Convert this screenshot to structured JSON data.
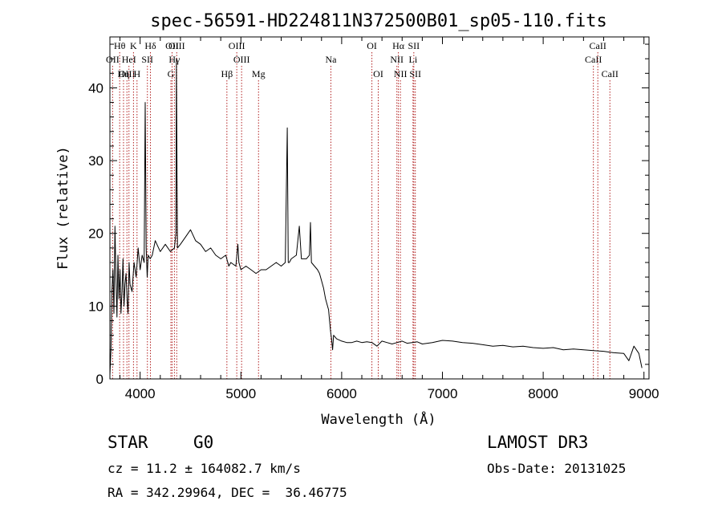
{
  "title": "spec-56591-HD224811N372500B01_sp05-110.fits",
  "info": {
    "object_class": "STAR",
    "subclass": "G0",
    "survey": "LAMOST DR3",
    "cz": "cz = 11.2 ± 164082.7 km/s",
    "obs_date": "Obs-Date: 20131025",
    "radec": "RA = 342.29964, DEC =  36.46775"
  },
  "chart_data": {
    "type": "line",
    "xlabel": "Wavelength (Å)",
    "ylabel": "Flux (relative)",
    "xlim": [
      3700,
      9050
    ],
    "ylim": [
      0,
      47
    ],
    "x_ticks": [
      4000,
      5000,
      6000,
      7000,
      8000,
      9000
    ],
    "y_ticks": [
      0,
      10,
      20,
      30,
      40
    ],
    "line_color": "#000000",
    "marker_color": "#b22222",
    "series": [
      {
        "x": [
          3700,
          3710,
          3720,
          3730,
          3740,
          3750,
          3760,
          3770,
          3780,
          3790,
          3800,
          3810,
          3820,
          3830,
          3840,
          3850,
          3860,
          3870,
          3880,
          3890,
          3900,
          3920,
          3940,
          3960,
          3980,
          4000,
          4020,
          4040,
          4050,
          4060,
          4070,
          4080,
          4100,
          4120,
          4150,
          4200,
          4250,
          4300,
          4340,
          4355,
          4360,
          4370,
          4400,
          4450,
          4500,
          4550,
          4600,
          4650,
          4700,
          4750,
          4800,
          4850,
          4870,
          4880,
          4900,
          4950,
          4970,
          4980,
          5000,
          5050,
          5100,
          5150,
          5200,
          5250,
          5300,
          5350,
          5400,
          5440,
          5460,
          5470,
          5480,
          5500,
          5550,
          5580,
          5600,
          5650,
          5680,
          5690,
          5700,
          5730,
          5760,
          5780,
          5800,
          5820,
          5840,
          5860,
          5870,
          5880,
          5890,
          5900,
          5910,
          5920,
          5950,
          6000,
          6050,
          6100,
          6150,
          6200,
          6250,
          6300,
          6350,
          6400,
          6450,
          6500,
          6550,
          6600,
          6650,
          6700,
          6750,
          6800,
          6900,
          7000,
          7100,
          7200,
          7300,
          7400,
          7500,
          7600,
          7700,
          7800,
          7900,
          8000,
          8100,
          8200,
          8300,
          8400,
          8500,
          8600,
          8700,
          8800,
          8850,
          8900,
          8950,
          8980
        ],
        "y": [
          0.5,
          4.0,
          12.0,
          15.0,
          9.0,
          21.0,
          14.0,
          8.5,
          17.0,
          11.0,
          15.0,
          9.0,
          12.0,
          16.5,
          10.0,
          13.0,
          14.5,
          11.0,
          9.0,
          16.0,
          13.0,
          12.0,
          16.0,
          14.0,
          18.0,
          15.0,
          17.0,
          16.0,
          38.0,
          18.0,
          14.0,
          17.0,
          16.5,
          17.0,
          19.0,
          17.5,
          18.5,
          17.5,
          18.0,
          20.0,
          44.0,
          18.0,
          18.5,
          19.5,
          20.5,
          19.0,
          18.5,
          17.5,
          18.0,
          17.0,
          16.5,
          17.0,
          16.0,
          15.5,
          16.0,
          15.5,
          18.5,
          16.0,
          15.0,
          15.5,
          15.0,
          14.5,
          15.0,
          15.0,
          15.5,
          16.0,
          15.5,
          16.0,
          34.5,
          16.0,
          16.0,
          16.5,
          17.0,
          21.0,
          16.5,
          16.5,
          17.0,
          21.5,
          16.0,
          15.5,
          15.0,
          14.5,
          13.5,
          12.5,
          11.0,
          10.0,
          9.5,
          8.0,
          6.5,
          5.5,
          4.0,
          6.0,
          5.5,
          5.2,
          5.0,
          5.0,
          5.2,
          5.0,
          5.1,
          5.0,
          4.5,
          5.2,
          5.0,
          4.8,
          5.0,
          5.2,
          4.9,
          5.0,
          5.1,
          4.8,
          5.0,
          5.3,
          5.2,
          5.0,
          4.9,
          4.7,
          4.5,
          4.6,
          4.4,
          4.5,
          4.3,
          4.2,
          4.3,
          4.0,
          4.1,
          4.0,
          3.9,
          3.8,
          3.6,
          3.5,
          2.5,
          4.5,
          3.5,
          1.5
        ]
      }
    ],
    "line_markers": [
      {
        "label": "Hθ",
        "x": 3797,
        "row": 0
      },
      {
        "label": "OII",
        "x": 3727,
        "row": 1
      },
      {
        "label": "OIII",
        "x": 3869,
        "row": 2
      },
      {
        "label": "Hη",
        "x": 3835,
        "row": 2
      },
      {
        "label": "HeI",
        "x": 3889,
        "row": 1
      },
      {
        "label": "K",
        "x": 3934,
        "row": 0
      },
      {
        "label": "H",
        "x": 3969,
        "row": 2
      },
      {
        "label": "SII",
        "x": 4072,
        "row": 1
      },
      {
        "label": "Hδ",
        "x": 4102,
        "row": 0
      },
      {
        "label": "OII",
        "x": 4317,
        "row": 0
      },
      {
        "label": "Hγ",
        "x": 4340,
        "row": 1
      },
      {
        "label": "G",
        "x": 4305,
        "row": 2
      },
      {
        "label": "OIII",
        "x": 4363,
        "row": 0
      },
      {
        "label": "Hβ",
        "x": 4861,
        "row": 2
      },
      {
        "label": "OIII",
        "x": 4959,
        "row": 0
      },
      {
        "label": "OIII",
        "x": 5007,
        "row": 1
      },
      {
        "label": "Mg",
        "x": 5175,
        "row": 2
      },
      {
        "label": "Na",
        "x": 5893,
        "row": 1
      },
      {
        "label": "OI",
        "x": 6300,
        "row": 0
      },
      {
        "label": "OI",
        "x": 6363,
        "row": 2
      },
      {
        "label": "Hα",
        "x": 6563,
        "row": 0
      },
      {
        "label": "NII",
        "x": 6548,
        "row": 1
      },
      {
        "label": "NII",
        "x": 6583,
        "row": 2
      },
      {
        "label": "SII",
        "x": 6716,
        "row": 0
      },
      {
        "label": "Li",
        "x": 6708,
        "row": 1
      },
      {
        "label": "SII",
        "x": 6731,
        "row": 2
      },
      {
        "label": "CaII",
        "x": 8498,
        "row": 1
      },
      {
        "label": "CaII",
        "x": 8542,
        "row": 0
      },
      {
        "label": "CaII",
        "x": 8662,
        "row": 2
      }
    ]
  }
}
